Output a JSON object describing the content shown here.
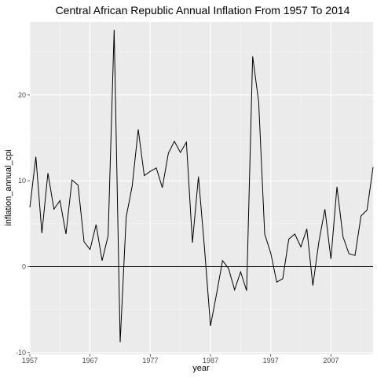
{
  "chart_data": {
    "type": "line",
    "title": "Central African Republic Annual Inflation From 1957 To 2014",
    "xlabel": "year",
    "ylabel": "inflation_annual_cpi",
    "xlim": [
      1957,
      2014
    ],
    "ylim": [
      -10.2,
      28.5
    ],
    "x_ticks": [
      1957,
      1967,
      1977,
      1987,
      1997,
      2007
    ],
    "x_tick_labels": [
      "1957",
      "1967",
      "1977",
      "1987",
      "1997",
      "2007"
    ],
    "y_ticks": [
      -10,
      0,
      10,
      20
    ],
    "y_tick_labels": [
      "-10",
      "0",
      "10",
      "20"
    ],
    "y_minor_ticks": [
      -5,
      5,
      15,
      25
    ],
    "x_minor_ticks": [
      1962,
      1972,
      1982,
      1992,
      2002,
      2012
    ],
    "hline": 0,
    "series": [
      {
        "name": "inflation_annual_cpi",
        "x": [
          1957,
          1958,
          1959,
          1960,
          1961,
          1962,
          1963,
          1964,
          1965,
          1966,
          1967,
          1968,
          1969,
          1970,
          1971,
          1972,
          1973,
          1974,
          1975,
          1976,
          1977,
          1978,
          1979,
          1980,
          1981,
          1982,
          1983,
          1984,
          1985,
          1986,
          1987,
          1988,
          1989,
          1990,
          1991,
          1992,
          1993,
          1994,
          1995,
          1996,
          1997,
          1998,
          1999,
          2000,
          2001,
          2002,
          2003,
          2004,
          2005,
          2006,
          2007,
          2008,
          2009,
          2010,
          2011,
          2012,
          2013,
          2014
        ],
        "y": [
          6.9,
          12.8,
          3.9,
          10.9,
          6.7,
          7.7,
          3.8,
          10.1,
          9.5,
          2.9,
          2.0,
          4.9,
          0.7,
          3.6,
          27.6,
          -8.8,
          5.8,
          9.4,
          16.0,
          10.6,
          11.1,
          11.5,
          9.2,
          13.2,
          14.6,
          13.3,
          14.5,
          2.8,
          10.5,
          2.2,
          -6.9,
          -3.2,
          0.7,
          -0.2,
          -2.7,
          -0.6,
          -2.8,
          24.5,
          19.2,
          3.8,
          1.6,
          -1.8,
          -1.4,
          3.2,
          3.8,
          2.3,
          4.4,
          -2.2,
          2.9,
          6.7,
          0.9,
          9.3,
          3.5,
          1.5,
          1.3,
          5.9,
          6.6,
          11.6
        ],
        "color": "#000000"
      }
    ],
    "colors": {
      "panel_background": "#ebebeb",
      "grid_major": "#ffffff",
      "grid_minor": "#f5f5f5",
      "line": "#000000"
    }
  }
}
